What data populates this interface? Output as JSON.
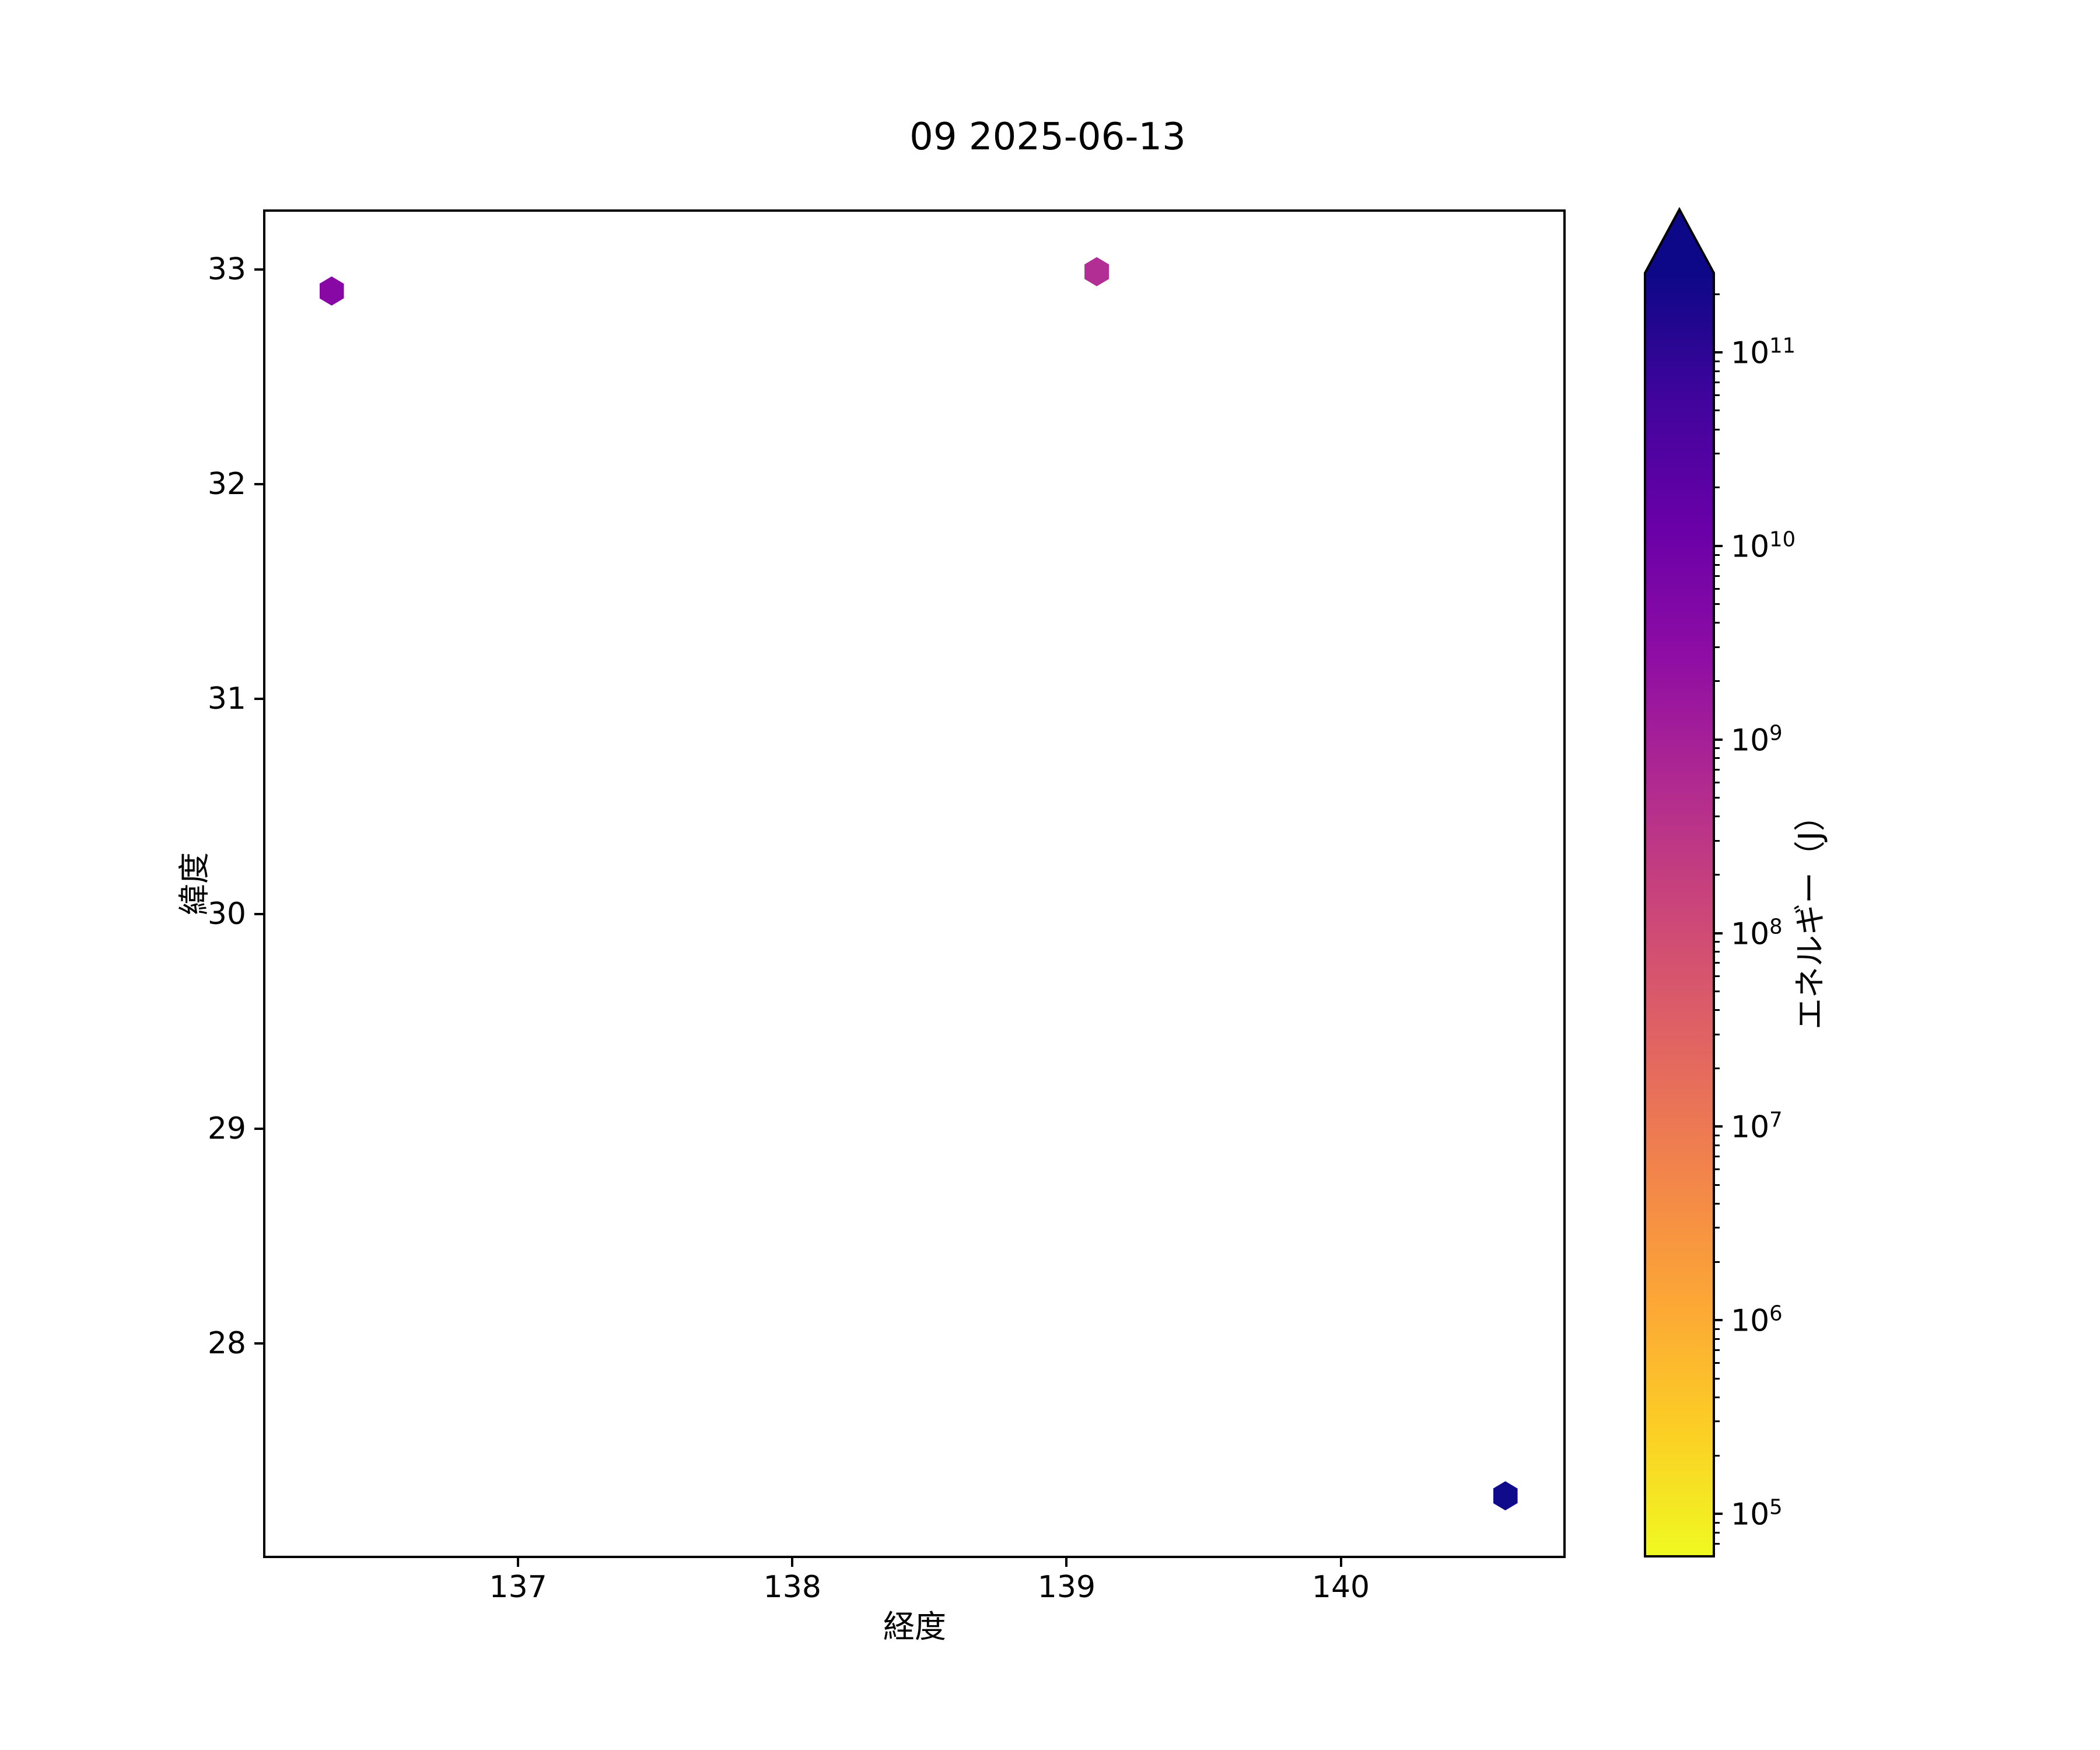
{
  "title": "09 2025-06-13",
  "chart_data": {
    "type": "scatter",
    "marker": "hexagon",
    "title": "09 2025-06-13",
    "xlabel": "経度",
    "ylabel": "緯度",
    "xlim": [
      136.07,
      140.82
    ],
    "ylim": [
      27.0,
      33.28
    ],
    "xticks": [
      137,
      138,
      139,
      140
    ],
    "yticks": [
      33,
      32,
      31,
      30,
      29,
      28
    ],
    "grid": false,
    "points": [
      {
        "lon": 136.32,
        "lat": 32.9,
        "color": "#8708a5",
        "energy_j_approx": 3000000000.0
      },
      {
        "lon": 139.11,
        "lat": 32.99,
        "color": "#b22e94",
        "energy_j_approx": 600000000.0
      },
      {
        "lon": 140.6,
        "lat": 27.29,
        "color": "#100b8b",
        "energy_j_approx": 200000000000.0
      }
    ],
    "colorbar": {
      "label": "エネルギー（J）",
      "scale": "log",
      "tick_exponents": [
        11,
        10,
        9,
        8,
        7,
        6,
        5
      ],
      "range_exponents": [
        4.78,
        11.41
      ],
      "extend": "max",
      "colormap": "plasma_r",
      "stops_top_to_bottom": [
        "#0d0887",
        "#41049d",
        "#6a00a8",
        "#8f0da4",
        "#b12a90",
        "#cc4778",
        "#e16462",
        "#f2844b",
        "#fca636",
        "#fcce25",
        "#f0f921"
      ]
    }
  }
}
